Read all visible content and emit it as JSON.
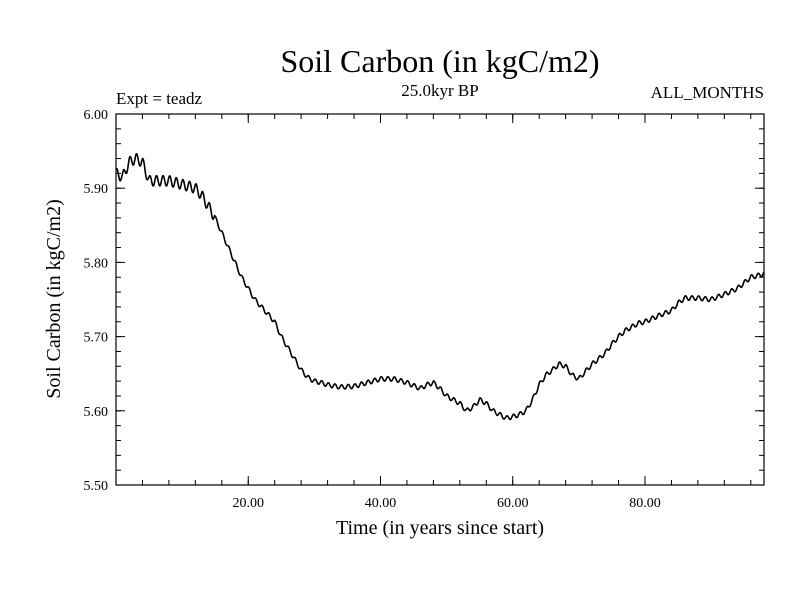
{
  "chart_data": {
    "type": "line",
    "title": "Soil Carbon (in kgC/m2)",
    "subtitle": "25.0kyr BP",
    "annotation_left": "Expt = teadz",
    "annotation_right": "ALL_MONTHS",
    "xlabel": "Time (in years since start)",
    "ylabel": "Soil Carbon (in kgC/m2)",
    "xlim": [
      0,
      98
    ],
    "ylim": [
      5.5,
      6.0
    ],
    "x_ticks": [
      20,
      40,
      60,
      80
    ],
    "x_tick_labels": [
      "20.00",
      "40.00",
      "60.00",
      "80.00"
    ],
    "y_ticks": [
      5.5,
      5.6,
      5.7,
      5.8,
      5.9,
      6.0
    ],
    "y_tick_labels": [
      "5.50",
      "5.60",
      "5.70",
      "5.80",
      "5.90",
      "6.00"
    ],
    "grid": false,
    "series": [
      {
        "name": "Soil Carbon",
        "color": "#000000",
        "x": [
          0,
          1,
          2,
          3,
          4,
          5,
          6,
          8,
          10,
          12,
          13,
          14,
          15,
          16,
          17,
          18,
          19,
          20,
          21,
          22,
          23,
          24,
          25,
          26,
          27,
          28,
          29,
          30,
          31,
          32,
          34,
          36,
          38,
          40,
          42,
          44,
          46,
          47,
          48,
          49,
          50,
          51,
          52,
          53,
          54,
          55,
          56,
          57,
          58,
          59,
          60,
          61,
          62,
          63,
          64,
          65,
          66,
          67,
          68,
          69,
          70,
          71,
          72,
          73,
          74,
          75,
          76,
          77,
          78,
          79,
          80,
          82,
          84,
          85,
          86,
          88,
          90,
          92,
          94,
          96,
          97,
          98
        ],
        "y": [
          5.92,
          5.915,
          5.935,
          5.94,
          5.935,
          5.91,
          5.91,
          5.91,
          5.905,
          5.9,
          5.89,
          5.875,
          5.86,
          5.84,
          5.82,
          5.8,
          5.78,
          5.765,
          5.75,
          5.74,
          5.73,
          5.72,
          5.7,
          5.685,
          5.67,
          5.655,
          5.645,
          5.64,
          5.638,
          5.635,
          5.632,
          5.633,
          5.638,
          5.643,
          5.643,
          5.638,
          5.63,
          5.635,
          5.638,
          5.63,
          5.62,
          5.615,
          5.61,
          5.6,
          5.605,
          5.615,
          5.61,
          5.6,
          5.595,
          5.59,
          5.592,
          5.595,
          5.6,
          5.615,
          5.635,
          5.648,
          5.655,
          5.663,
          5.66,
          5.648,
          5.643,
          5.653,
          5.663,
          5.67,
          5.678,
          5.69,
          5.7,
          5.708,
          5.713,
          5.718,
          5.72,
          5.728,
          5.735,
          5.745,
          5.752,
          5.752,
          5.75,
          5.757,
          5.765,
          5.78,
          5.782,
          5.785
        ]
      }
    ]
  }
}
